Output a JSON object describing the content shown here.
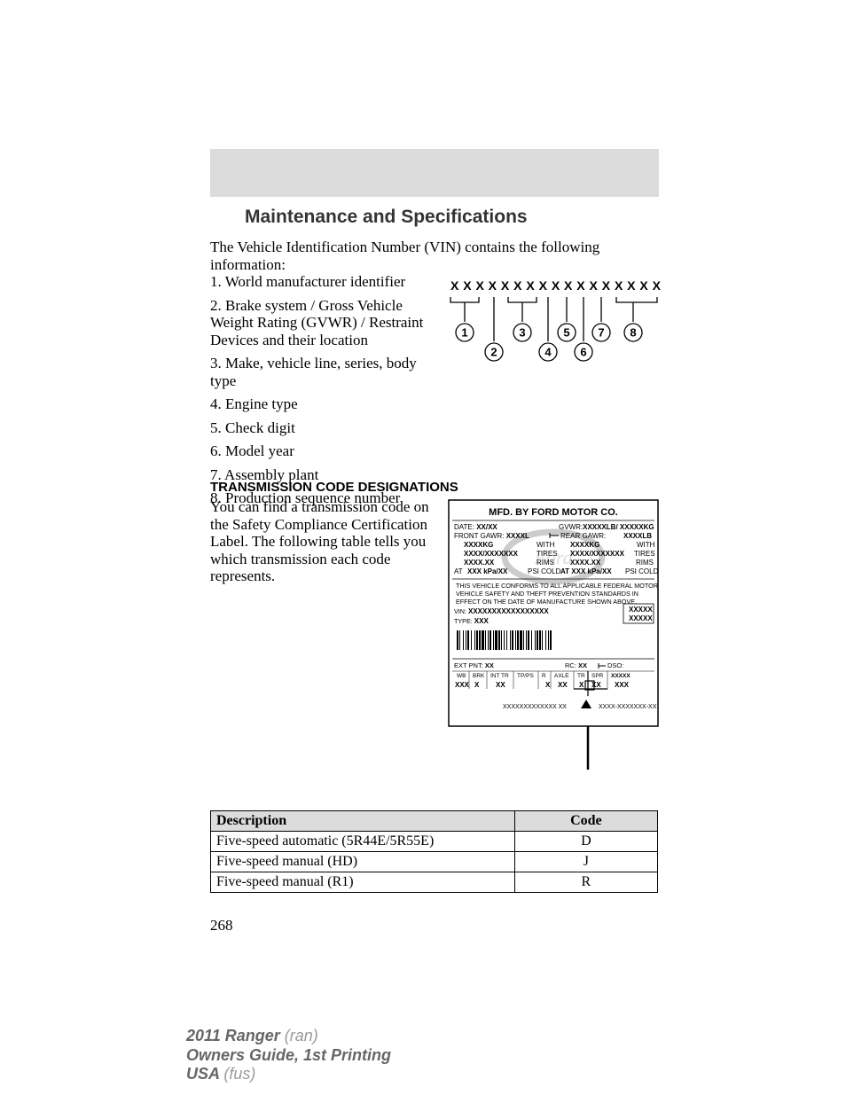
{
  "title": "Maintenance and Specifications",
  "intro": "The Vehicle Identification Number (VIN) contains the following information:",
  "items": {
    "i1": "1. World manufacturer identifier",
    "i2": "2. Brake system / Gross Vehicle Weight Rating (GVWR) / Restraint Devices and their location",
    "i3": "3. Make, vehicle line, series, body type",
    "i4": "4. Engine type",
    "i5": "5. Check digit",
    "i6": "6. Model year",
    "i7": "7. Assembly plant",
    "i8": "8. Production sequence number"
  },
  "section_heading": "TRANSMISSION CODE DESIGNATIONS",
  "para2": "You can find a transmission code on the Safety Compliance Certification Label. The following table tells you which transmission each code represents.",
  "table": {
    "head_desc": "Description",
    "head_code": "Code",
    "rows": [
      {
        "desc": "Five-speed automatic (5R44E/5R55E)",
        "code": "D"
      },
      {
        "desc": "Five-speed manual (HD)",
        "code": "J"
      },
      {
        "desc": "Five-speed manual (R1)",
        "code": "R"
      }
    ]
  },
  "page_number": "268",
  "footer": {
    "line1_bold": "2011 Ranger ",
    "line1_gray": "(ran)",
    "line2": "Owners Guide, 1st Printing",
    "line3_bold": "USA ",
    "line3_gray": "(fus)"
  },
  "vin_diagram": {
    "xrow": "X X X   X   X X X   X    X    X    X    X X X X X X",
    "circles": [
      "1",
      "2",
      "3",
      "4",
      "5",
      "6",
      "7",
      "8"
    ]
  },
  "label_diagram": {
    "top": "MFD. BY FORD MOTOR CO.",
    "date_lbl": "DATE:",
    "date_val": "XX/XX",
    "gvwr_lbl": "GVWR:",
    "gvwr_val": "XXXXXLB/ XXXXXKG",
    "front_lbl": "FRONT GAWR:",
    "front_val": "XXXXL",
    "rear_lbl": "REAR GAWR:",
    "rear_val": "XXXXLB",
    "kg_l": "XXXXKG",
    "with": "WITH",
    "kg_r": "XXXXKG",
    "tires_l": "XXXX/XXXXXXX",
    "tires_lbl": "TIRES",
    "tires_r": "XXXX/XXXXXXX",
    "rims_l": "XXXX.XX",
    "rims_lbl": "RIMS",
    "rims_r": "XXXX.XX",
    "at": "AT",
    "psi_l": "XXX  kPa/XX",
    "psi_lbl": "PSI COLD",
    "psi_r": "AT   XXX  kPa/XX",
    "conform1": "THIS VEHICLE CONFORMS TO ALL APPLICABLE FEDERAL MOTOR",
    "conform2": "VEHICLE SAFETY AND THEFT PREVENTION STANDARDS IN",
    "conform3": "EFFECT ON THE DATE OF MANUFACTURE SHOWN ABOVE.",
    "vin_lbl": "VIN:",
    "vin_val": "XXXXXXXXXXXXXXXXX",
    "type_lbl": "TYPE:",
    "type_val": "XXX",
    "box_r1": "XXXXX",
    "box_r2": "XXXXX",
    "extpnt_lbl": "EXT PNT:",
    "extpnt_val": "XX",
    "rc_lbl": "RC:",
    "rc_val": "XX",
    "dso_lbl": "DSO:",
    "hdr": [
      "WB",
      "BRK",
      "INT TR",
      "TP/PS",
      "R",
      "AXLE",
      "TR",
      "SPR",
      "XXXXX"
    ],
    "vals": [
      "XXX",
      "X",
      "XX",
      "X",
      "XX",
      "X",
      "XX",
      "XXX"
    ],
    "bot_l": "XXXXXXXXXXXXX  XX",
    "bot_r": "XXXX-XXXXXXX-XX"
  }
}
